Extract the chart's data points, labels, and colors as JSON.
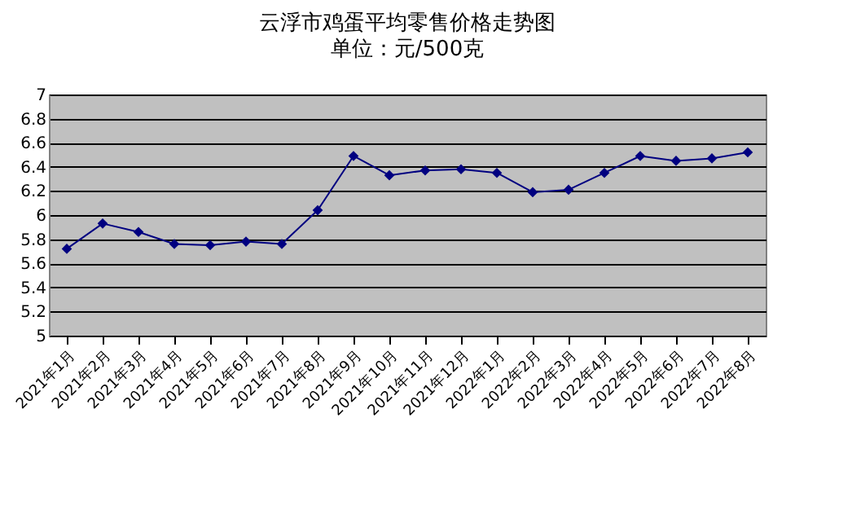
{
  "chart_data": {
    "type": "line",
    "title": "云浮市鸡蛋平均零售价格走势图",
    "subtitle": "单位：元/500克",
    "categories": [
      "2021年1月",
      "2021年2月",
      "2021年3月",
      "2021年4月",
      "2021年5月",
      "2021年6月",
      "2021年7月",
      "2021年8月",
      "2021年9月",
      "2021年10月",
      "2021年11月",
      "2021年12月",
      "2022年1月",
      "2022年2月",
      "2022年3月",
      "2022年4月",
      "2022年5月",
      "2022年6月",
      "2022年7月",
      "2022年8月"
    ],
    "series": [
      {
        "color": "#000080",
        "values": [
          5.72,
          5.93,
          5.86,
          5.76,
          5.75,
          5.78,
          5.76,
          6.04,
          6.49,
          6.33,
          6.37,
          6.38,
          6.35,
          6.19,
          6.21,
          6.35,
          6.49,
          6.45,
          6.47,
          6.52
        ]
      }
    ],
    "ylim": [
      5,
      7
    ],
    "yticks": [
      5,
      {
        "value": 5.2,
        "label": "5.2"
      },
      {
        "value": 5.4,
        "label": "5.4"
      },
      {
        "value": 5.6,
        "label": "5.6"
      },
      {
        "value": 5.8,
        "label": "5.8"
      },
      6,
      {
        "value": 6.2,
        "label": "6.2"
      },
      {
        "value": 6.4,
        "label": "6.4"
      },
      {
        "value": 6.6,
        "label": "6.6"
      },
      {
        "value": 6.8,
        "label": "6.8"
      },
      7
    ],
    "grid": "y",
    "marker": "diamond",
    "line_style": "solid"
  }
}
